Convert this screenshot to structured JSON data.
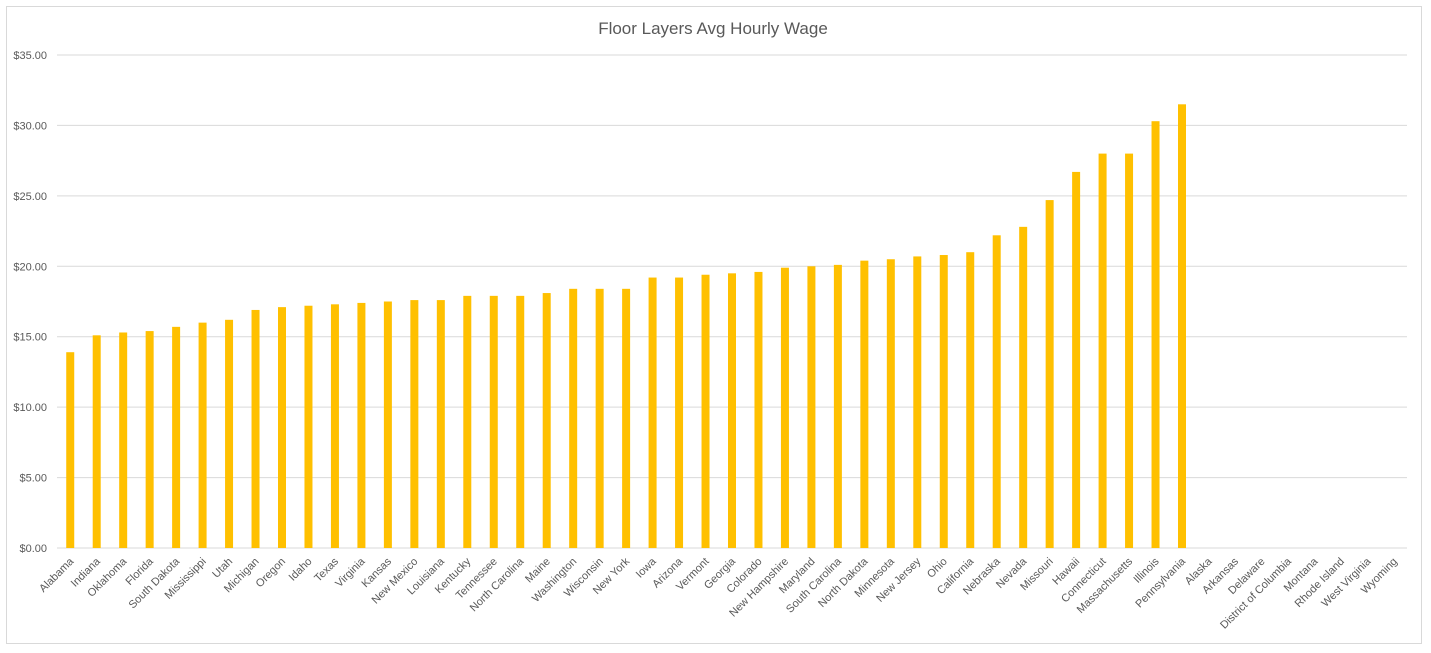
{
  "chart_data": {
    "type": "bar",
    "title": "Floor Layers Avg Hourly Wage",
    "xlabel": "",
    "ylabel": "",
    "ylim": [
      0,
      35
    ],
    "yticks": [
      0,
      5,
      10,
      15,
      20,
      25,
      30,
      35
    ],
    "ytick_labels": [
      "$0.00",
      "$5.00",
      "$10.00",
      "$15.00",
      "$20.00",
      "$25.00",
      "$30.00",
      "$35.00"
    ],
    "grid": true,
    "bar_color": "#FFC000",
    "categories": [
      "Alabama",
      "Indiana",
      "Oklahoma",
      "Florida",
      "South Dakota",
      "Mississippi",
      "Utah",
      "Michigan",
      "Oregon",
      "Idaho",
      "Texas",
      "Virginia",
      "Kansas",
      "New Mexico",
      "Louisiana",
      "Kentucky",
      "Tennessee",
      "North Carolina",
      "Maine",
      "Washington",
      "Wisconsin",
      "New York",
      "Iowa",
      "Arizona",
      "Vermont",
      "Georgia",
      "Colorado",
      "New Hampshire",
      "Maryland",
      "South Carolina",
      "North Dakota",
      "Minnesota",
      "New Jersey",
      "Ohio",
      "California",
      "Nebraska",
      "Nevada",
      "Missouri",
      "Hawaii",
      "Connecticut",
      "Massachusetts",
      "Illinois",
      "Pennsylvania",
      "Alaska",
      "Arkansas",
      "Delaware",
      "District of Columbia",
      "Montana",
      "Rhode Island",
      "West Virginia",
      "Wyoming"
    ],
    "values": [
      13.9,
      15.1,
      15.3,
      15.4,
      15.7,
      16.0,
      16.2,
      16.9,
      17.1,
      17.2,
      17.3,
      17.4,
      17.5,
      17.6,
      17.6,
      17.9,
      17.9,
      17.9,
      18.1,
      18.4,
      18.4,
      18.4,
      19.2,
      19.2,
      19.4,
      19.5,
      19.6,
      19.9,
      20.0,
      20.1,
      20.4,
      20.5,
      20.7,
      20.8,
      21.0,
      22.2,
      22.8,
      24.7,
      26.7,
      28.0,
      28.0,
      30.3,
      31.5,
      null,
      null,
      null,
      null,
      null,
      null,
      null,
      null
    ]
  }
}
